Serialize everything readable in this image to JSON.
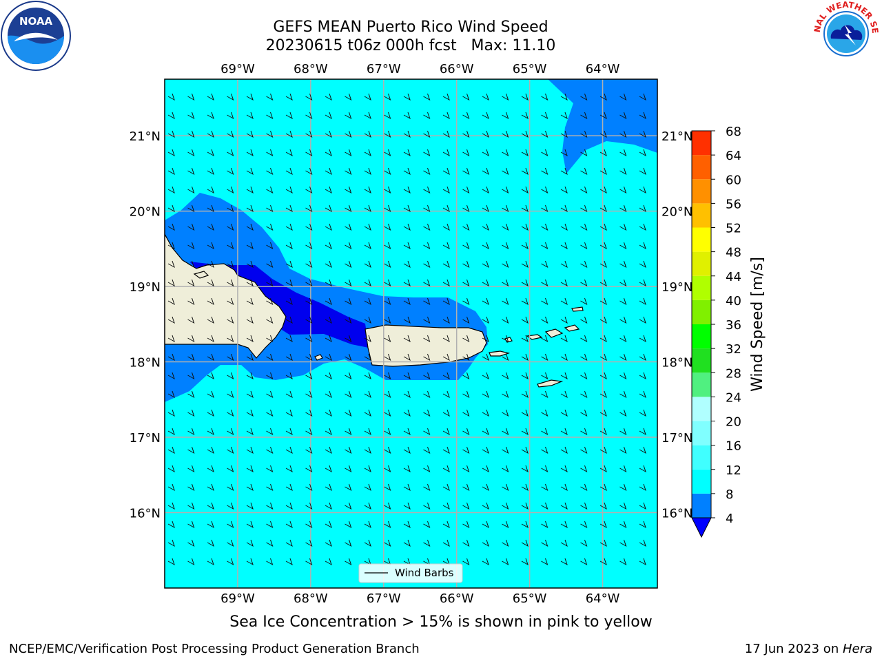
{
  "title_line1": "GEFS MEAN Puerto Rico Wind Speed",
  "title_line2": "20230615 t06z 000h fcst   Max: 11.10",
  "lon_labels": [
    "69°W",
    "68°W",
    "67°W",
    "66°W",
    "65°W",
    "64°W"
  ],
  "lat_labels": [
    "21°N",
    "20°N",
    "19°N",
    "18°N",
    "17°N",
    "16°N"
  ],
  "colorbar": {
    "label": "Wind Speed [m/s]",
    "ticks": [
      "4",
      "8",
      "12",
      "16",
      "20",
      "24",
      "28",
      "32",
      "36",
      "40",
      "44",
      "48",
      "52",
      "56",
      "60",
      "64",
      "68"
    ],
    "colors": [
      "#0000ff",
      "#0080ff",
      "#00ffff",
      "#40ffff",
      "#80ffff",
      "#b0ffff",
      "#50f080",
      "#20e020",
      "#00ff00",
      "#80f000",
      "#b0ff00",
      "#e0f000",
      "#ffff00",
      "#ffc000",
      "#ff9000",
      "#ff6000",
      "#ff3000",
      "#ff0000"
    ]
  },
  "legend": {
    "label": "Wind Barbs"
  },
  "subtitle": "Sea Ice Concentration > 15% is shown in pink to yellow",
  "footer": {
    "left": "NCEP/EMC/Verification Post Processing Product Generation Branch",
    "date": "17 Jun 2023 on ",
    "machine": "Hera"
  },
  "colors": {
    "ocean_light": "#00ffff",
    "ocean_mid": "#0080ff",
    "ocean_dark": "#0000ee",
    "land": "#efeed9",
    "grid": "#b0b0b0"
  },
  "logos": {
    "noaa": "NOAA",
    "nws": "NATIONAL WEATHER SERVICE"
  },
  "chart_data": {
    "type": "map",
    "projection": "equirectangular",
    "lon_range": [
      -70,
      -63.25
    ],
    "lat_range": [
      15,
      21.75
    ],
    "contour_levels": [
      4,
      8,
      12,
      16,
      20,
      24,
      28,
      32,
      36,
      40,
      44,
      48,
      52,
      56,
      60,
      64,
      68
    ],
    "max_value": 11.1
  }
}
